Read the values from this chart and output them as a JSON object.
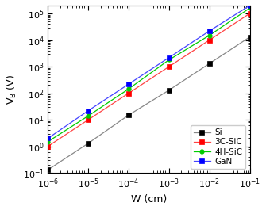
{
  "title": "",
  "xlabel": "W (cm)",
  "ylabel": "V$_\\mathregular{B}$ (V)",
  "xlim": [
    1e-06,
    0.1
  ],
  "ylim": [
    0.1,
    200000.0
  ],
  "series": {
    "Si": {
      "x": [
        1e-06,
        1e-05,
        0.0001,
        0.001,
        0.01,
        0.1
      ],
      "y": [
        0.13,
        1.3,
        15,
        130,
        1300,
        13000
      ],
      "color": "#888888",
      "marker": "s",
      "markersize": 4,
      "linewidth": 0.9,
      "markerfacecolor": "black",
      "markeredgecolor": "black"
    },
    "3C-SiC": {
      "x": [
        1e-06,
        1e-05,
        0.0001,
        0.001,
        0.01,
        0.1
      ],
      "y": [
        1.0,
        10,
        100,
        1000,
        10000,
        100000
      ],
      "color": "#ff4444",
      "marker": "s",
      "markersize": 4,
      "linewidth": 0.9,
      "markerfacecolor": "red",
      "markeredgecolor": "red"
    },
    "4H-SiC": {
      "x": [
        1e-06,
        1e-05,
        0.0001,
        0.001,
        0.01,
        0.1
      ],
      "y": [
        1.5,
        14,
        145,
        1800,
        15000,
        160000
      ],
      "color": "#00cc00",
      "marker": "o",
      "markersize": 4,
      "linewidth": 0.9,
      "markerfacecolor": "#00cc00",
      "markeredgecolor": "#00cc00"
    },
    "GaN": {
      "x": [
        1e-06,
        1e-05,
        0.0001,
        0.001,
        0.01,
        0.1
      ],
      "y": [
        2.0,
        22,
        220,
        2200,
        22000,
        200000
      ],
      "color": "#4444ff",
      "marker": "s",
      "markersize": 4,
      "linewidth": 0.9,
      "markerfacecolor": "blue",
      "markeredgecolor": "blue"
    }
  },
  "legend_loc": "lower right",
  "legend_fontsize": 7.5,
  "axis_fontsize": 9,
  "tick_fontsize": 8,
  "background_color": "#ffffff"
}
